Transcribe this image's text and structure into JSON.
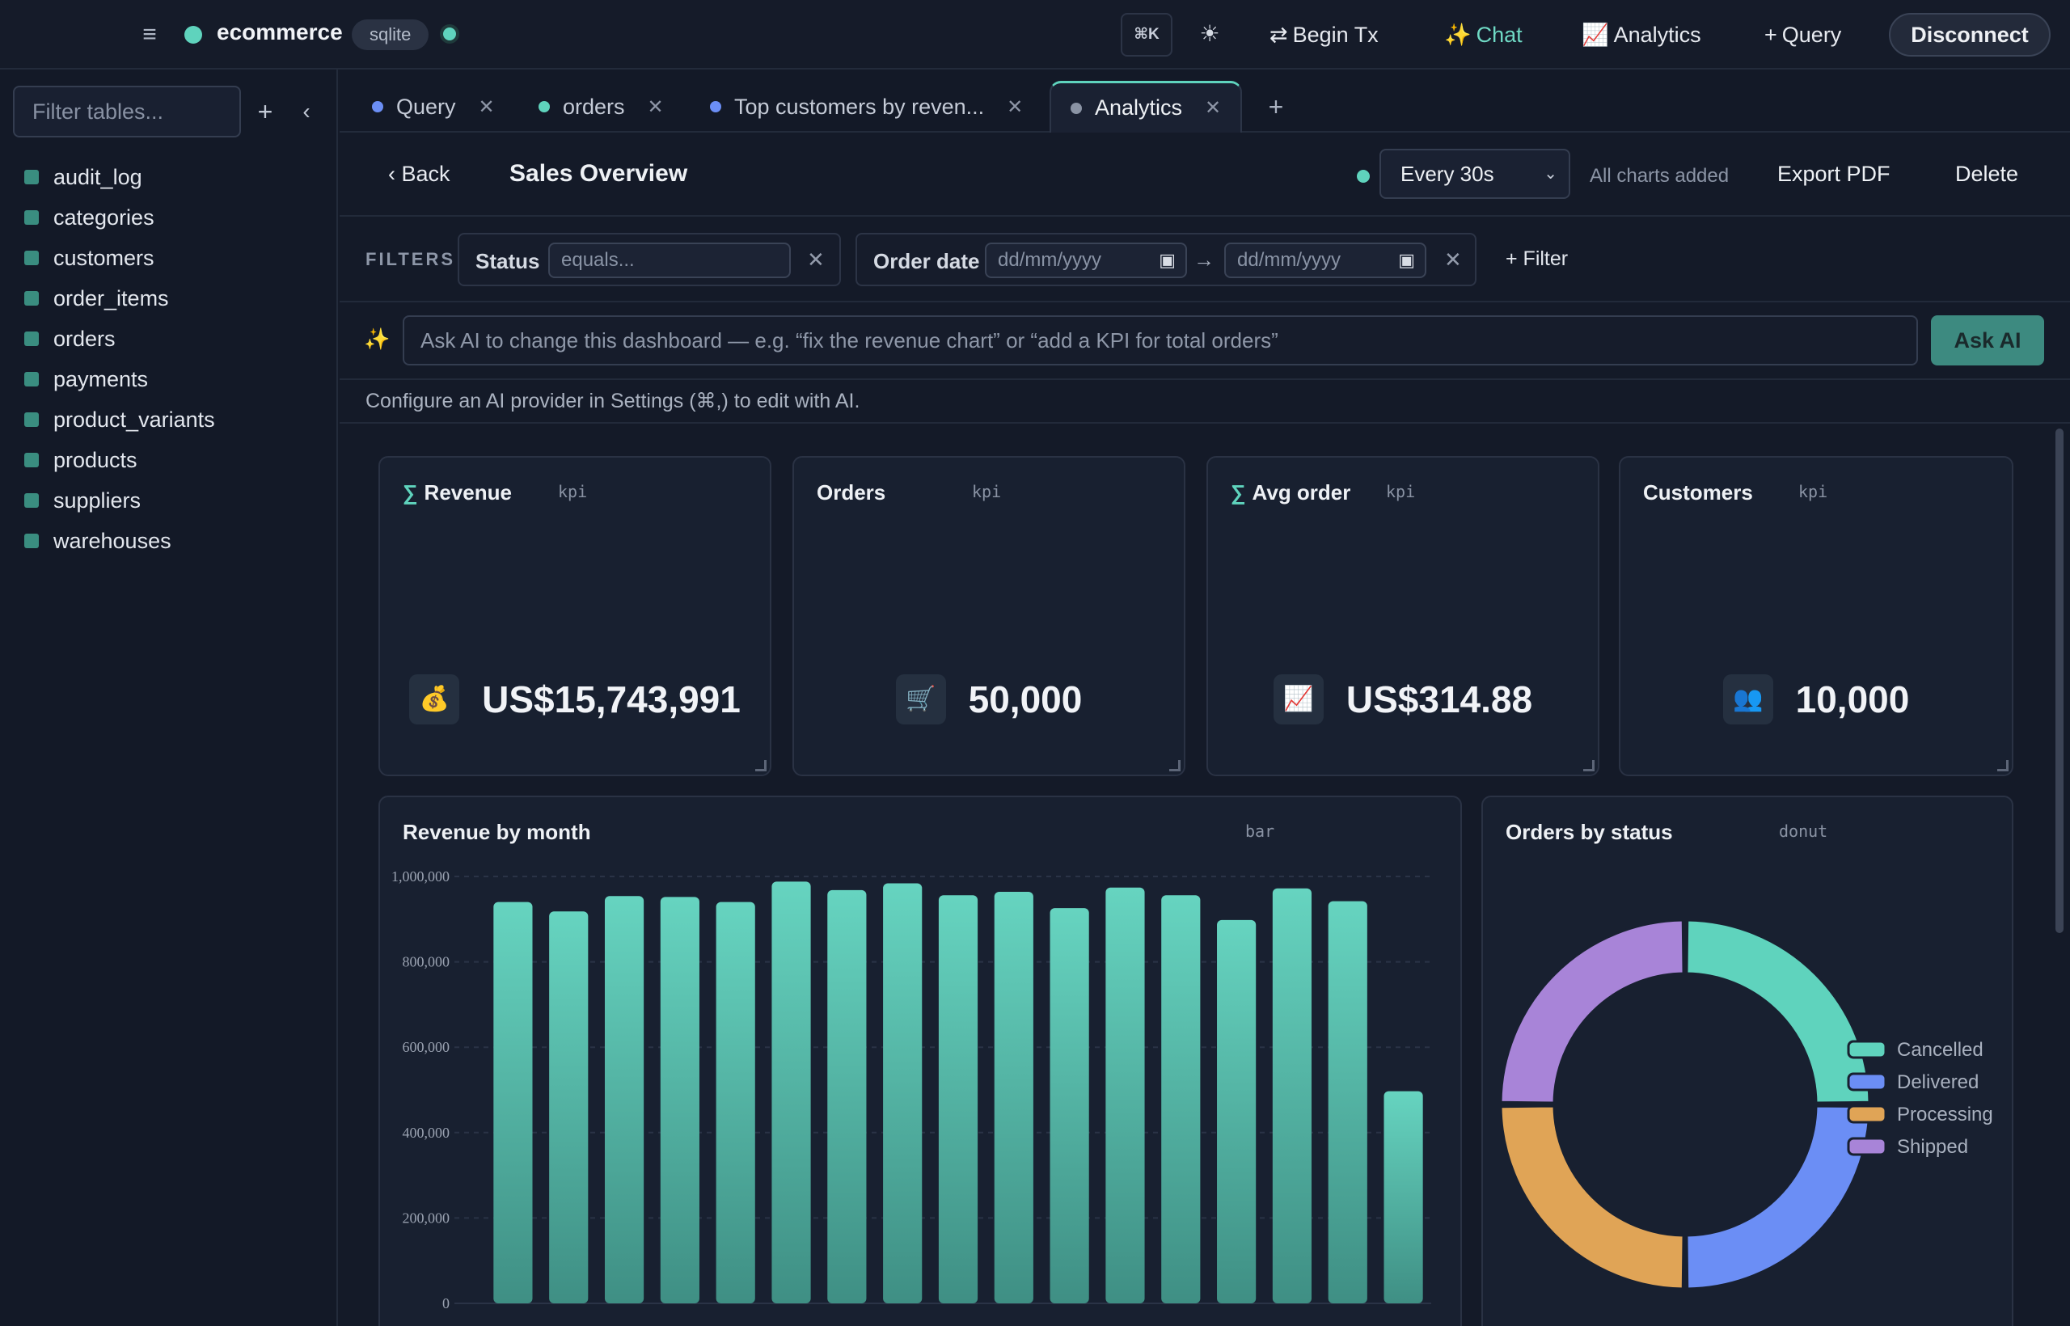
{
  "topbar": {
    "menu_icon": "hamburger-menu-icon",
    "title": "ecommerce",
    "db_type": "sqlite",
    "command_key": "⌘K",
    "theme_icon": "sun-icon",
    "actions": {
      "begin_tx": {
        "icon": "⇄",
        "label": "Begin Tx"
      },
      "chat": {
        "icon": "✨",
        "label": "Chat"
      },
      "analytics": {
        "icon": "📈",
        "label": "Analytics"
      },
      "query": {
        "icon": "+",
        "label": "Query"
      }
    },
    "disconnect_label": "Disconnect",
    "accent_color": "#5fd3bd"
  },
  "sidebar": {
    "filter_placeholder": "Filter tables...",
    "add_icon": "+",
    "collapse_icon": "‹",
    "tables": [
      "audit_log",
      "categories",
      "customers",
      "order_items",
      "orders",
      "payments",
      "product_variants",
      "products",
      "suppliers",
      "warehouses"
    ]
  },
  "tabs": [
    {
      "label": "Query",
      "dot_color": "#6b8ef5"
    },
    {
      "label": "orders",
      "dot_color": "#5fd3bd"
    },
    {
      "label": "Top customers by reven...",
      "dot_color": "#6b8ef5"
    },
    {
      "label": "Analytics",
      "dot_color": "#8a93a4"
    }
  ],
  "dashboard": {
    "back_label": "‹ Back",
    "title": "Sales Overview",
    "refresh_interval": "Every 30s",
    "charts_status": "All charts added",
    "export_label": "Export PDF",
    "delete_label": "Delete"
  },
  "filters": {
    "label": "FILTERS",
    "status": {
      "name": "Status",
      "placeholder": "equals..."
    },
    "order_date": {
      "name": "Order date",
      "from_placeholder": "dd/mm/yyyy",
      "to_placeholder": "dd/mm/yyyy"
    },
    "add_label": "+ Filter"
  },
  "ai": {
    "placeholder": "Ask AI to change this dashboard — e.g. “fix the revenue chart” or “add a KPI for total orders”",
    "button_label": "Ask AI",
    "hint": "Configure an AI provider in Settings (⌘,) to edit with AI."
  },
  "kpis": [
    {
      "title": "Revenue",
      "aggregate": true,
      "type": "kpi",
      "icon": "💰",
      "value": "US$15,743,991"
    },
    {
      "title": "Orders",
      "aggregate": false,
      "type": "kpi",
      "icon": "🛒",
      "value": "50,000"
    },
    {
      "title": "Avg order",
      "aggregate": true,
      "type": "kpi",
      "icon": "📈",
      "value": "US$314.88"
    },
    {
      "title": "Customers",
      "aggregate": false,
      "type": "kpi",
      "icon": "👥",
      "value": "10,000"
    }
  ],
  "revenue_chart": {
    "title": "Revenue by month",
    "type_label": "bar"
  },
  "status_chart": {
    "title": "Orders by status",
    "type_label": "donut"
  },
  "chart_data": [
    {
      "type": "bar",
      "title": "Revenue by month",
      "values": [
        940000,
        918000,
        954000,
        952000,
        940000,
        988000,
        968000,
        984000,
        956000,
        964000,
        926000,
        974000,
        956000,
        898000,
        972000,
        942000,
        497000
      ],
      "ylim": [
        0,
        1000000
      ],
      "yticks": [
        0,
        200000,
        400000,
        600000,
        800000,
        1000000
      ],
      "ytick_labels": [
        "0",
        "200,000",
        "400,000",
        "600,000",
        "800,000",
        "1,000,000"
      ],
      "grid": true,
      "bar_color": "#5fd3bd"
    },
    {
      "type": "pie",
      "title": "Orders by status",
      "donut": true,
      "categories": [
        "Cancelled",
        "Delivered",
        "Processing",
        "Shipped"
      ],
      "values": [
        25,
        25,
        25,
        25
      ],
      "colors": [
        "#5fd3bd",
        "#6b8ef5",
        "#e0a456",
        "#a884d8"
      ],
      "legend_placement": "right"
    }
  ]
}
